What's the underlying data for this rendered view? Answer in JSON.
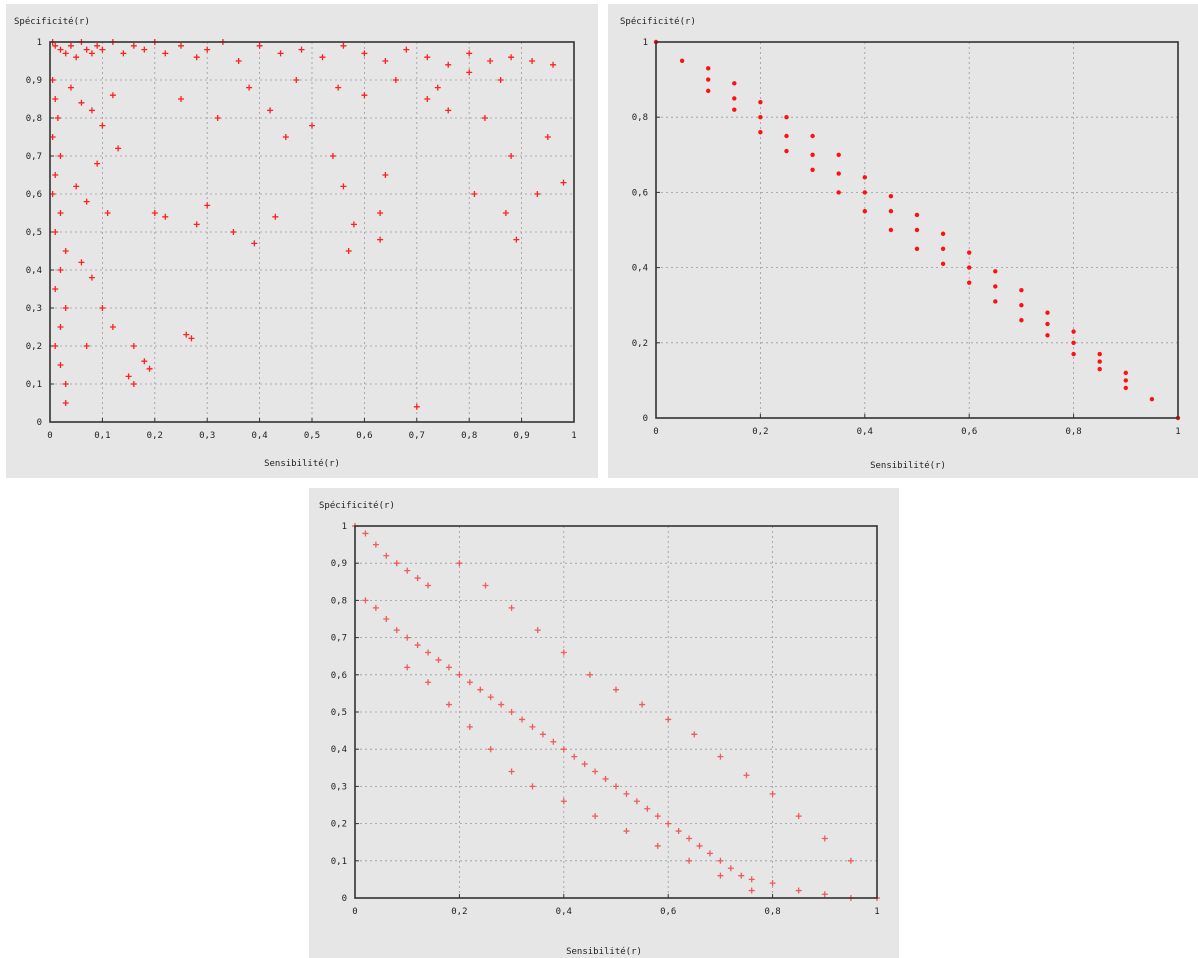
{
  "chart_data": [
    {
      "type": "scatter",
      "ylabel": "Spécificité(r)",
      "xlabel": "Sensibilité(r)",
      "xlim": [
        0,
        1
      ],
      "ylim": [
        0,
        1
      ],
      "grid": true,
      "marker": "+",
      "color": "#ff2020",
      "x_ticks": [
        "0",
        "0,1",
        "0,2",
        "0,3",
        "0,4",
        "0,5",
        "0,6",
        "0,7",
        "0,8",
        "0,9",
        "1"
      ],
      "y_ticks": [
        "0",
        "0,1",
        "0,2",
        "0,3",
        "0,4",
        "0,5",
        "0,6",
        "0,7",
        "0,8",
        "0,9",
        "1"
      ],
      "points": [
        [
          0.005,
          1.0
        ],
        [
          0.01,
          0.99
        ],
        [
          0.02,
          0.98
        ],
        [
          0.03,
          0.97
        ],
        [
          0.04,
          0.99
        ],
        [
          0.05,
          0.96
        ],
        [
          0.06,
          1.0
        ],
        [
          0.07,
          0.98
        ],
        [
          0.08,
          0.97
        ],
        [
          0.09,
          0.99
        ],
        [
          0.1,
          0.98
        ],
        [
          0.12,
          1.0
        ],
        [
          0.14,
          0.97
        ],
        [
          0.16,
          0.99
        ],
        [
          0.18,
          0.98
        ],
        [
          0.2,
          1.0
        ],
        [
          0.22,
          0.97
        ],
        [
          0.25,
          0.99
        ],
        [
          0.28,
          0.96
        ],
        [
          0.3,
          0.98
        ],
        [
          0.33,
          1.0
        ],
        [
          0.36,
          0.95
        ],
        [
          0.4,
          0.99
        ],
        [
          0.44,
          0.97
        ],
        [
          0.48,
          0.98
        ],
        [
          0.52,
          0.96
        ],
        [
          0.56,
          0.99
        ],
        [
          0.6,
          0.97
        ],
        [
          0.64,
          0.95
        ],
        [
          0.68,
          0.98
        ],
        [
          0.72,
          0.96
        ],
        [
          0.76,
          0.94
        ],
        [
          0.8,
          0.97
        ],
        [
          0.84,
          0.95
        ],
        [
          0.88,
          0.96
        ],
        [
          0.92,
          0.95
        ],
        [
          0.96,
          0.94
        ],
        [
          0.005,
          0.9
        ],
        [
          0.01,
          0.85
        ],
        [
          0.015,
          0.8
        ],
        [
          0.005,
          0.75
        ],
        [
          0.02,
          0.7
        ],
        [
          0.01,
          0.65
        ],
        [
          0.005,
          0.6
        ],
        [
          0.02,
          0.55
        ],
        [
          0.01,
          0.5
        ],
        [
          0.03,
          0.45
        ],
        [
          0.02,
          0.4
        ],
        [
          0.01,
          0.35
        ],
        [
          0.03,
          0.3
        ],
        [
          0.02,
          0.25
        ],
        [
          0.01,
          0.2
        ],
        [
          0.02,
          0.15
        ],
        [
          0.03,
          0.1
        ],
        [
          0.03,
          0.05
        ],
        [
          0.04,
          0.88
        ],
        [
          0.06,
          0.84
        ],
        [
          0.08,
          0.82
        ],
        [
          0.1,
          0.78
        ],
        [
          0.12,
          0.86
        ],
        [
          0.05,
          0.62
        ],
        [
          0.07,
          0.58
        ],
        [
          0.09,
          0.68
        ],
        [
          0.11,
          0.55
        ],
        [
          0.13,
          0.72
        ],
        [
          0.06,
          0.42
        ],
        [
          0.08,
          0.38
        ],
        [
          0.1,
          0.3
        ],
        [
          0.12,
          0.25
        ],
        [
          0.07,
          0.2
        ],
        [
          0.15,
          0.12
        ],
        [
          0.16,
          0.1
        ],
        [
          0.18,
          0.16
        ],
        [
          0.19,
          0.14
        ],
        [
          0.16,
          0.2
        ],
        [
          0.2,
          0.55
        ],
        [
          0.22,
          0.54
        ],
        [
          0.26,
          0.23
        ],
        [
          0.27,
          0.22
        ],
        [
          0.28,
          0.52
        ],
        [
          0.3,
          0.57
        ],
        [
          0.35,
          0.5
        ],
        [
          0.39,
          0.47
        ],
        [
          0.43,
          0.54
        ],
        [
          0.45,
          0.75
        ],
        [
          0.5,
          0.78
        ],
        [
          0.54,
          0.7
        ],
        [
          0.56,
          0.62
        ],
        [
          0.57,
          0.45
        ],
        [
          0.58,
          0.52
        ],
        [
          0.63,
          0.48
        ],
        [
          0.63,
          0.55
        ],
        [
          0.64,
          0.65
        ],
        [
          0.7,
          0.04
        ],
        [
          0.72,
          0.85
        ],
        [
          0.76,
          0.82
        ],
        [
          0.81,
          0.6
        ],
        [
          0.83,
          0.8
        ],
        [
          0.87,
          0.55
        ],
        [
          0.88,
          0.7
        ],
        [
          0.89,
          0.48
        ],
        [
          0.93,
          0.6
        ],
        [
          0.95,
          0.75
        ],
        [
          0.98,
          0.63
        ],
        [
          0.25,
          0.85
        ],
        [
          0.32,
          0.8
        ],
        [
          0.38,
          0.88
        ],
        [
          0.42,
          0.82
        ],
        [
          0.47,
          0.9
        ],
        [
          0.55,
          0.88
        ],
        [
          0.6,
          0.86
        ],
        [
          0.66,
          0.9
        ],
        [
          0.74,
          0.88
        ],
        [
          0.8,
          0.92
        ],
        [
          0.86,
          0.9
        ]
      ]
    },
    {
      "type": "scatter",
      "ylabel": "Spécificité(r)",
      "xlabel": "Sensibilité(r)",
      "xlim": [
        0,
        1
      ],
      "ylim": [
        0,
        1
      ],
      "grid": true,
      "marker": "dot",
      "color": "#ff1010",
      "x_ticks": [
        "0",
        "0,2",
        "0,4",
        "0,6",
        "0,8",
        "1"
      ],
      "y_ticks": [
        "0",
        "0,2",
        "0,4",
        "0,6",
        "0,8",
        "1"
      ],
      "points": [
        [
          0.0,
          1.0
        ],
        [
          0.05,
          0.95
        ],
        [
          0.1,
          0.9
        ],
        [
          0.15,
          0.85
        ],
        [
          0.2,
          0.8
        ],
        [
          0.25,
          0.75
        ],
        [
          0.3,
          0.7
        ],
        [
          0.35,
          0.65
        ],
        [
          0.4,
          0.6
        ],
        [
          0.45,
          0.55
        ],
        [
          0.5,
          0.5
        ],
        [
          0.55,
          0.45
        ],
        [
          0.6,
          0.4
        ],
        [
          0.65,
          0.35
        ],
        [
          0.7,
          0.3
        ],
        [
          0.75,
          0.25
        ],
        [
          0.8,
          0.2
        ],
        [
          0.85,
          0.15
        ],
        [
          0.9,
          0.1
        ],
        [
          0.95,
          0.05
        ],
        [
          1.0,
          0.0
        ],
        [
          0.1,
          0.93
        ],
        [
          0.15,
          0.89
        ],
        [
          0.2,
          0.84
        ],
        [
          0.25,
          0.8
        ],
        [
          0.3,
          0.75
        ],
        [
          0.35,
          0.7
        ],
        [
          0.4,
          0.64
        ],
        [
          0.45,
          0.59
        ],
        [
          0.5,
          0.54
        ],
        [
          0.55,
          0.49
        ],
        [
          0.6,
          0.44
        ],
        [
          0.65,
          0.39
        ],
        [
          0.7,
          0.34
        ],
        [
          0.75,
          0.28
        ],
        [
          0.8,
          0.23
        ],
        [
          0.85,
          0.17
        ],
        [
          0.9,
          0.12
        ],
        [
          0.1,
          0.87
        ],
        [
          0.15,
          0.82
        ],
        [
          0.2,
          0.76
        ],
        [
          0.25,
          0.71
        ],
        [
          0.3,
          0.66
        ],
        [
          0.35,
          0.6
        ],
        [
          0.4,
          0.55
        ],
        [
          0.45,
          0.5
        ],
        [
          0.5,
          0.45
        ],
        [
          0.55,
          0.41
        ],
        [
          0.6,
          0.36
        ],
        [
          0.65,
          0.31
        ],
        [
          0.7,
          0.26
        ],
        [
          0.75,
          0.22
        ],
        [
          0.8,
          0.17
        ],
        [
          0.85,
          0.13
        ],
        [
          0.9,
          0.08
        ]
      ]
    },
    {
      "type": "scatter",
      "ylabel": "Spécificité(r)",
      "xlabel": "Sensibilité(r)",
      "xlim": [
        0,
        1
      ],
      "ylim": [
        0,
        1
      ],
      "grid": true,
      "marker": "+",
      "color": "#f05a5a",
      "x_ticks": [
        "0",
        "0,2",
        "0,4",
        "0,6",
        "0,8",
        "1"
      ],
      "y_ticks": [
        "0",
        "0,1",
        "0,2",
        "0,3",
        "0,4",
        "0,5",
        "0,6",
        "0,7",
        "0,8",
        "0,9",
        "1"
      ],
      "points": [
        [
          0.0,
          1.0
        ],
        [
          0.02,
          0.98
        ],
        [
          0.04,
          0.95
        ],
        [
          0.06,
          0.92
        ],
        [
          0.08,
          0.9
        ],
        [
          0.1,
          0.88
        ],
        [
          0.12,
          0.86
        ],
        [
          0.14,
          0.84
        ],
        [
          0.02,
          0.8
        ],
        [
          0.04,
          0.78
        ],
        [
          0.06,
          0.75
        ],
        [
          0.08,
          0.72
        ],
        [
          0.1,
          0.7
        ],
        [
          0.12,
          0.68
        ],
        [
          0.14,
          0.66
        ],
        [
          0.16,
          0.64
        ],
        [
          0.18,
          0.62
        ],
        [
          0.2,
          0.6
        ],
        [
          0.22,
          0.58
        ],
        [
          0.24,
          0.56
        ],
        [
          0.26,
          0.54
        ],
        [
          0.28,
          0.52
        ],
        [
          0.3,
          0.5
        ],
        [
          0.32,
          0.48
        ],
        [
          0.34,
          0.46
        ],
        [
          0.36,
          0.44
        ],
        [
          0.38,
          0.42
        ],
        [
          0.4,
          0.4
        ],
        [
          0.42,
          0.38
        ],
        [
          0.44,
          0.36
        ],
        [
          0.46,
          0.34
        ],
        [
          0.48,
          0.32
        ],
        [
          0.5,
          0.3
        ],
        [
          0.52,
          0.28
        ],
        [
          0.54,
          0.26
        ],
        [
          0.56,
          0.24
        ],
        [
          0.58,
          0.22
        ],
        [
          0.6,
          0.2
        ],
        [
          0.62,
          0.18
        ],
        [
          0.64,
          0.16
        ],
        [
          0.66,
          0.14
        ],
        [
          0.68,
          0.12
        ],
        [
          0.7,
          0.1
        ],
        [
          0.72,
          0.08
        ],
        [
          0.74,
          0.06
        ],
        [
          0.76,
          0.05
        ],
        [
          0.8,
          0.04
        ],
        [
          0.85,
          0.02
        ],
        [
          0.9,
          0.01
        ],
        [
          0.95,
          0.0
        ],
        [
          1.0,
          0.0
        ],
        [
          0.2,
          0.9
        ],
        [
          0.25,
          0.84
        ],
        [
          0.3,
          0.78
        ],
        [
          0.35,
          0.72
        ],
        [
          0.4,
          0.66
        ],
        [
          0.45,
          0.6
        ],
        [
          0.5,
          0.56
        ],
        [
          0.55,
          0.52
        ],
        [
          0.6,
          0.48
        ],
        [
          0.65,
          0.44
        ],
        [
          0.7,
          0.38
        ],
        [
          0.75,
          0.33
        ],
        [
          0.8,
          0.28
        ],
        [
          0.85,
          0.22
        ],
        [
          0.9,
          0.16
        ],
        [
          0.95,
          0.1
        ],
        [
          0.1,
          0.62
        ],
        [
          0.14,
          0.58
        ],
        [
          0.18,
          0.52
        ],
        [
          0.22,
          0.46
        ],
        [
          0.26,
          0.4
        ],
        [
          0.3,
          0.34
        ],
        [
          0.34,
          0.3
        ],
        [
          0.4,
          0.26
        ],
        [
          0.46,
          0.22
        ],
        [
          0.52,
          0.18
        ],
        [
          0.58,
          0.14
        ],
        [
          0.64,
          0.1
        ],
        [
          0.7,
          0.06
        ],
        [
          0.76,
          0.02
        ]
      ]
    }
  ]
}
